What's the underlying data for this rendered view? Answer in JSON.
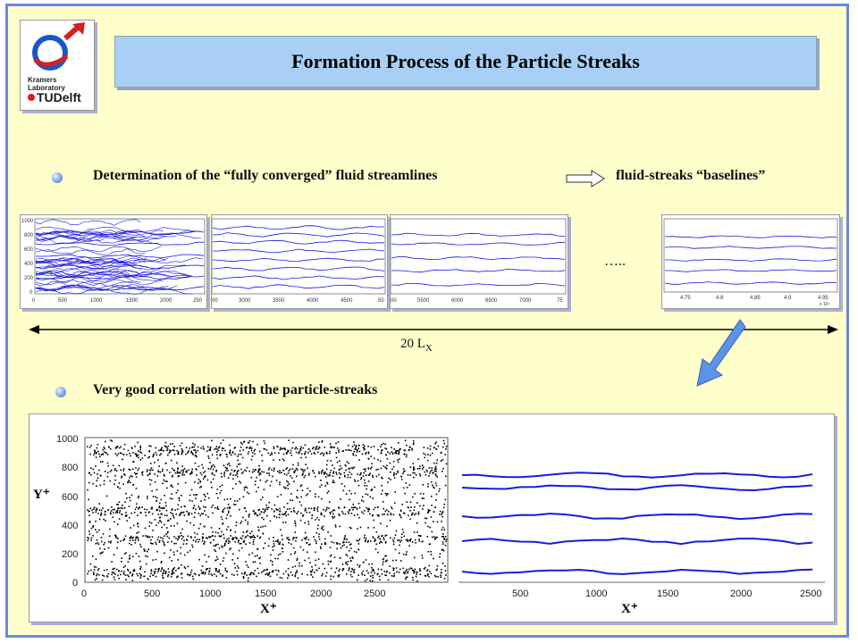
{
  "header": {
    "title": "Formation Process of the Particle Streaks",
    "logo": {
      "lab_text": "Kramers Laboratory",
      "university_text": "TUDelft"
    }
  },
  "bullets": [
    {
      "text": "Determination  of  the  “fully  converged”  fluid  streamlines"
    },
    {
      "text": "Very good correlation with the particle-streaks"
    }
  ],
  "arrow_target_text": "fluid-streaks  “baselines”",
  "ellipsis_text": "…..",
  "domain_span": {
    "label_main": "20 L",
    "label_sub": "X"
  },
  "small_panels": [
    {
      "ticks_x": [
        "0",
        "500",
        "1000",
        "1500",
        "2000",
        "250"
      ],
      "ticks_y": [
        "1000",
        "800",
        "600",
        "400",
        "200",
        "0"
      ]
    },
    {
      "ticks_x": [
        "00",
        "3000",
        "3500",
        "4000",
        "4500",
        "50"
      ]
    },
    {
      "ticks_x": [
        "00",
        "5500",
        "6000",
        "6500",
        "7000",
        "75"
      ]
    },
    {
      "ticks_x": [
        "4.75",
        "4.8",
        "4.85",
        "4.9",
        "4.95"
      ],
      "exponent": "x 10⁴"
    }
  ],
  "bottom_left": {
    "ticks_x": [
      "0",
      "500",
      "1000",
      "1500",
      "2000",
      "2500"
    ],
    "ticks_y": [
      "1000",
      "800",
      "600",
      "400",
      "200",
      "0"
    ],
    "xlabel": "X⁺",
    "ylabel": "Y⁺"
  },
  "bottom_right": {
    "ticks_x": [
      "500",
      "1000",
      "1500",
      "2000",
      "2500"
    ],
    "xlabel": "X⁺"
  },
  "colors": {
    "frame": "#6f86e0",
    "background": "#ffffcc",
    "title_bg": "#a9cff5",
    "streamline": "#1a1adc",
    "accent_arrow": "#5b93e6"
  }
}
